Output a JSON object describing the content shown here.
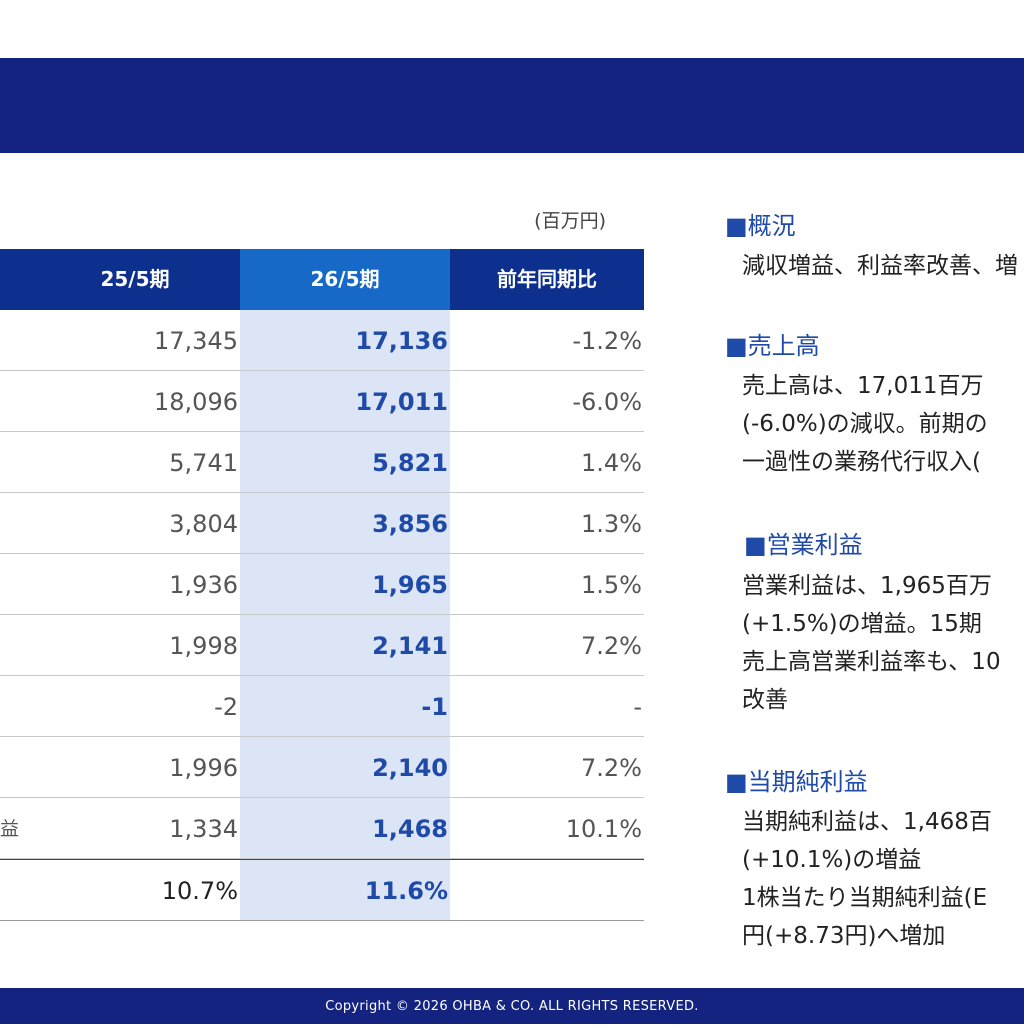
{
  "header": {},
  "table": {
    "unit": "(百万円)",
    "columns": {
      "prev": "25/5期",
      "cur": "26/5期",
      "yoy": "前年同期比"
    },
    "rows": [
      {
        "label": "",
        "prev": "17,345",
        "cur": "17,136",
        "yoy": "-1.2%"
      },
      {
        "label": "",
        "prev": "18,096",
        "cur": "17,011",
        "yoy": "-6.0%"
      },
      {
        "label": "",
        "prev": "5,741",
        "cur": "5,821",
        "yoy": "1.4%"
      },
      {
        "label": "",
        "prev": "3,804",
        "cur": "3,856",
        "yoy": "1.3%"
      },
      {
        "label": "",
        "prev": "1,936",
        "cur": "1,965",
        "yoy": "1.5%"
      },
      {
        "label": "",
        "prev": "1,998",
        "cur": "2,141",
        "yoy": "7.2%"
      },
      {
        "label": "",
        "prev": "-2",
        "cur": "-1",
        "yoy": "-"
      },
      {
        "label": "",
        "prev": "1,996",
        "cur": "2,140",
        "yoy": "7.2%"
      },
      {
        "label": "益",
        "prev": "1,334",
        "cur": "1,468",
        "yoy": "10.1%"
      },
      {
        "label": "",
        "prev": "10.7%",
        "cur": "11.6%",
        "yoy": ""
      }
    ]
  },
  "notes": {
    "overview": {
      "heading": "■概況",
      "lines": [
        "減収増益、利益率改善、増"
      ]
    },
    "sales": {
      "heading": "■売上高",
      "lines": [
        "売上高は、17,011百万",
        "(-6.0%)の減収。前期の",
        "一過性の業務代行収入("
      ]
    },
    "operating": {
      "heading": "■営業利益",
      "lines": [
        "営業利益は、1,965百万",
        "(+1.5%)の増益。15期",
        "売上高営業利益率も、10",
        "改善"
      ]
    },
    "net": {
      "heading": "■当期純利益",
      "lines": [
        "当期純利益は、1,468百",
        "(+10.1%)の増益",
        "1株当たり当期純利益(E",
        "円(+8.73円)へ増加"
      ]
    }
  },
  "footer": {
    "copyright": "Copyright © 2026 OHBA & CO. ALL RIGHTS RESERVED."
  },
  "colors": {
    "navy": "#13237f",
    "header_blue": "#0d2f8e",
    "accent_blue": "#1669c7",
    "highlight": "#dbe5f6",
    "value_blue": "#1f4aa8"
  }
}
